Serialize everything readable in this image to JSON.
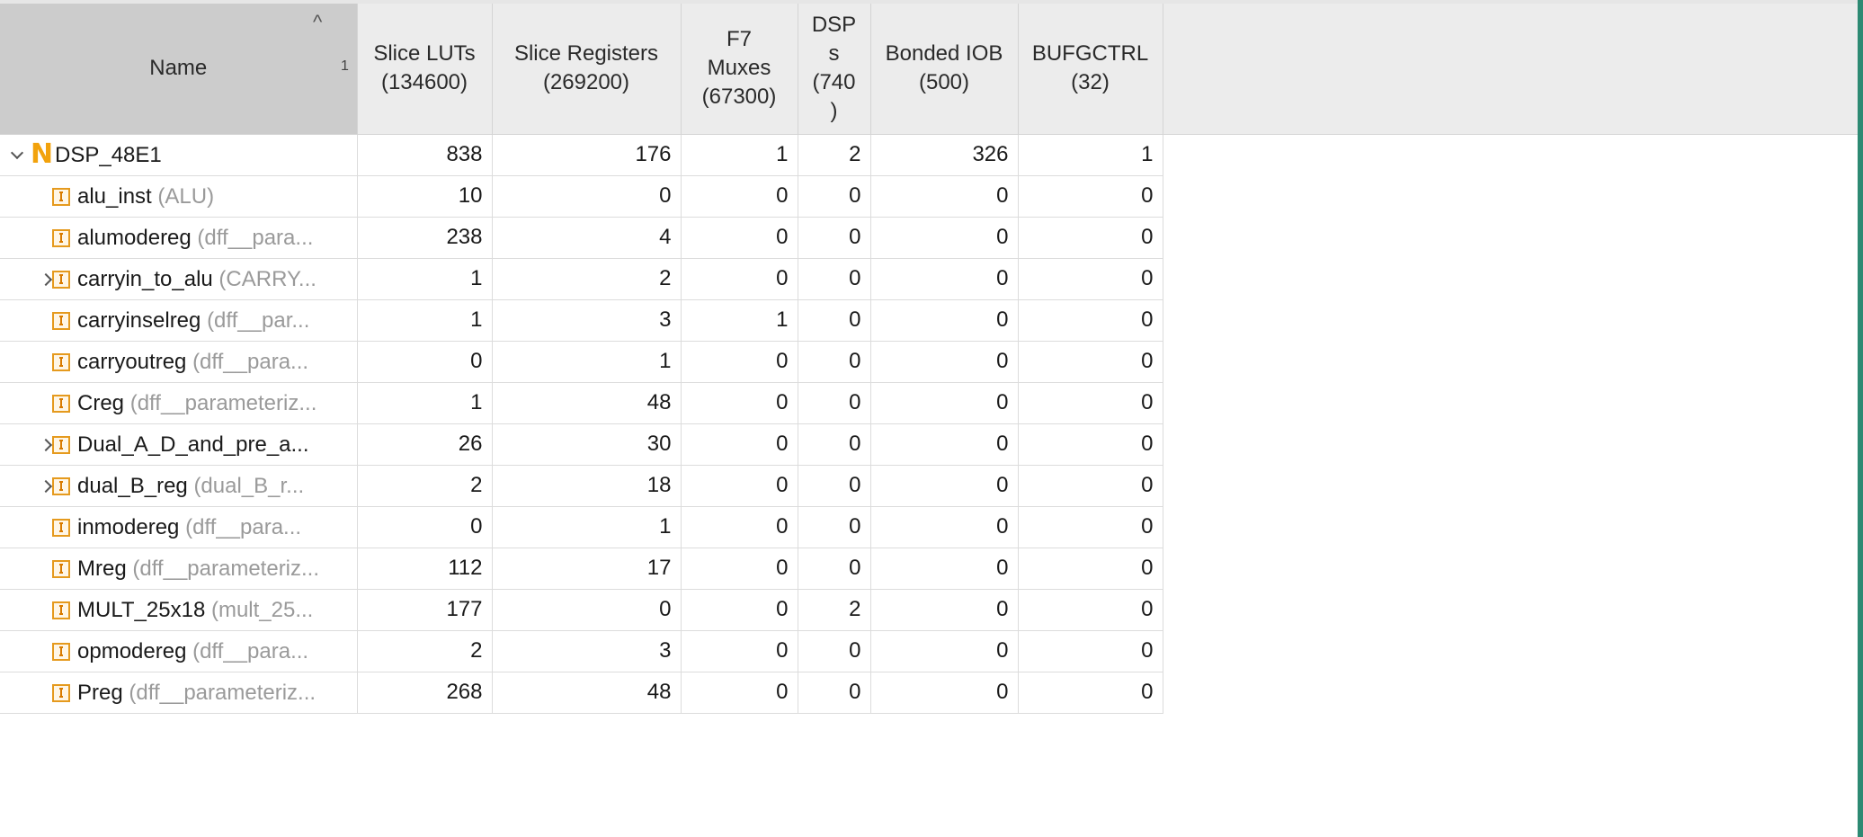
{
  "header": {
    "name": "Name",
    "sort_rank": "1",
    "columns": [
      {
        "key": "luts",
        "lines": [
          "Slice LUTs",
          "(134600)"
        ]
      },
      {
        "key": "regs",
        "lines": [
          "Slice Registers",
          "(269200)"
        ]
      },
      {
        "key": "f7",
        "lines": [
          "F7",
          "Muxes",
          "(67300)"
        ]
      },
      {
        "key": "dsps",
        "lines": [
          "DSP",
          "s",
          "(740",
          ")"
        ]
      },
      {
        "key": "iob",
        "lines": [
          "Bonded IOB",
          "(500)"
        ]
      },
      {
        "key": "bufg",
        "lines": [
          "BUFGCTRL",
          "(32)"
        ]
      }
    ]
  },
  "rows": [
    {
      "level": 0,
      "expander": "down",
      "icon": "netlist-icon",
      "name": "DSP_48E1",
      "type": "",
      "values": [
        "838",
        "176",
        "1",
        "2",
        "326",
        "1"
      ]
    },
    {
      "level": 1,
      "expander": "",
      "icon": "instance-icon",
      "name": "alu_inst",
      "type": "(ALU)",
      "values": [
        "10",
        "0",
        "0",
        "0",
        "0",
        "0"
      ]
    },
    {
      "level": 1,
      "expander": "",
      "icon": "instance-icon",
      "name": "alumodereg",
      "type": "(dff__para...",
      "values": [
        "238",
        "4",
        "0",
        "0",
        "0",
        "0"
      ]
    },
    {
      "level": 1,
      "expander": "right",
      "icon": "instance-icon",
      "name": "carryin_to_alu",
      "type": "(CARRY...",
      "values": [
        "1",
        "2",
        "0",
        "0",
        "0",
        "0"
      ]
    },
    {
      "level": 1,
      "expander": "",
      "icon": "instance-icon",
      "name": "carryinselreg",
      "type": "(dff__par...",
      "values": [
        "1",
        "3",
        "1",
        "0",
        "0",
        "0"
      ]
    },
    {
      "level": 1,
      "expander": "",
      "icon": "instance-icon",
      "name": "carryoutreg",
      "type": "(dff__para...",
      "values": [
        "0",
        "1",
        "0",
        "0",
        "0",
        "0"
      ]
    },
    {
      "level": 1,
      "expander": "",
      "icon": "instance-icon",
      "name": "Creg",
      "type": "(dff__parameteriz...",
      "values": [
        "1",
        "48",
        "0",
        "0",
        "0",
        "0"
      ]
    },
    {
      "level": 1,
      "expander": "right",
      "icon": "instance-icon",
      "name": "Dual_A_D_and_pre_a...",
      "type": "",
      "values": [
        "26",
        "30",
        "0",
        "0",
        "0",
        "0"
      ]
    },
    {
      "level": 1,
      "expander": "right",
      "icon": "instance-icon",
      "name": "dual_B_reg",
      "type": "(dual_B_r...",
      "values": [
        "2",
        "18",
        "0",
        "0",
        "0",
        "0"
      ]
    },
    {
      "level": 1,
      "expander": "",
      "icon": "instance-icon",
      "name": "inmodereg",
      "type": "(dff__para...",
      "values": [
        "0",
        "1",
        "0",
        "0",
        "0",
        "0"
      ]
    },
    {
      "level": 1,
      "expander": "",
      "icon": "instance-icon",
      "name": "Mreg",
      "type": "(dff__parameteriz...",
      "values": [
        "112",
        "17",
        "0",
        "0",
        "0",
        "0"
      ]
    },
    {
      "level": 1,
      "expander": "",
      "icon": "instance-icon",
      "name": "MULT_25x18",
      "type": "(mult_25...",
      "values": [
        "177",
        "0",
        "0",
        "2",
        "0",
        "0"
      ]
    },
    {
      "level": 1,
      "expander": "",
      "icon": "instance-icon",
      "name": "opmodereg",
      "type": "(dff__para...",
      "values": [
        "2",
        "3",
        "0",
        "0",
        "0",
        "0"
      ]
    },
    {
      "level": 1,
      "expander": "",
      "icon": "instance-icon",
      "name": "Preg",
      "type": "(dff__parameteriz...",
      "values": [
        "268",
        "48",
        "0",
        "0",
        "0",
        "0"
      ]
    }
  ]
}
